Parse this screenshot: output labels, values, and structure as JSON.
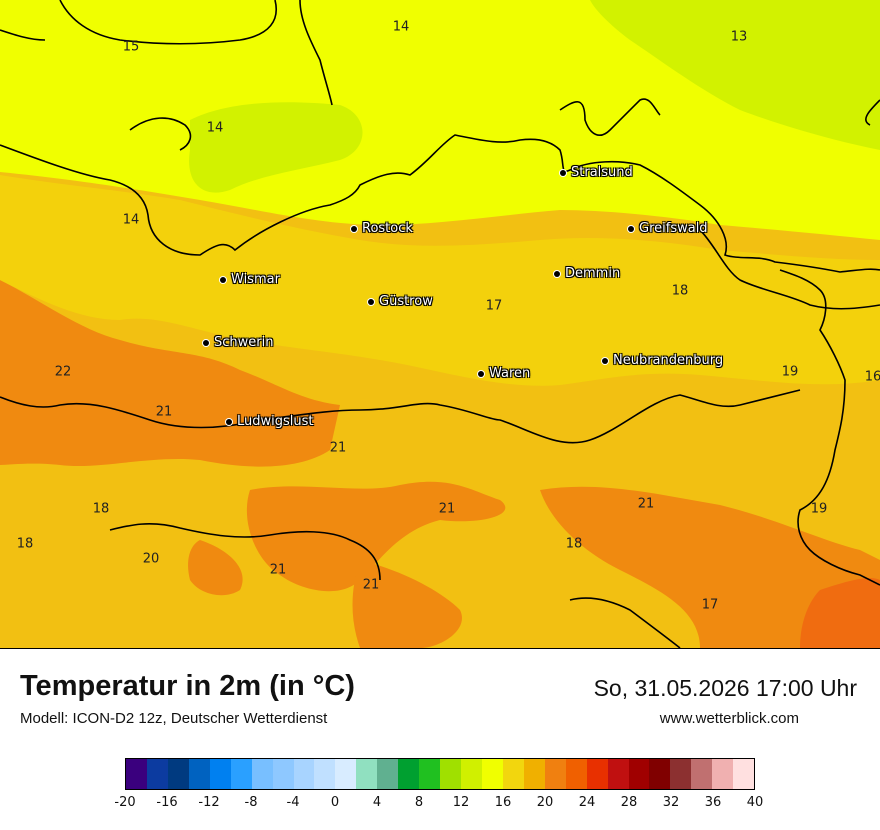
{
  "title": "Temperatur in 2m (in °C)",
  "subtitle": "Modell: ICON-D2 12z, Deutscher Wetterdienst",
  "datetime": "So, 31.05.2026 17:00 Uhr",
  "website": "www.wetterblick.com",
  "cities": [
    {
      "name": "Stralsund"
    },
    {
      "name": "Rostock"
    },
    {
      "name": "Greifswald"
    },
    {
      "name": "Wismar"
    },
    {
      "name": "Demmin"
    },
    {
      "name": "Güstrow"
    },
    {
      "name": "Schwerin"
    },
    {
      "name": "Neubrandenburg"
    },
    {
      "name": "Waren"
    },
    {
      "name": "Ludwigslust"
    }
  ],
  "temperature_labels": [
    "15",
    "14",
    "13",
    "14",
    "14",
    "18",
    "17",
    "22",
    "21",
    "19",
    "16",
    "21",
    "18",
    "21",
    "21",
    "19",
    "18",
    "18",
    "20",
    "21",
    "21",
    "17"
  ],
  "legend": {
    "colors": [
      "#3a007e",
      "#0c3ba0",
      "#003a80",
      "#0062c0",
      "#0080f0",
      "#2aa0ff",
      "#78bfff",
      "#8ec8ff",
      "#a8d4ff",
      "#c0e0ff",
      "#d8ecff",
      "#90e0c0",
      "#60b090",
      "#00a030",
      "#20c020",
      "#a0e000",
      "#d0f000",
      "#f0ff00",
      "#f2d60e",
      "#f0b000",
      "#f08010",
      "#f06000",
      "#e83000",
      "#c01010",
      "#a00000",
      "#800000",
      "#8c3030",
      "#c07070",
      "#f0b0b0",
      "#ffe0e0"
    ],
    "ticks": [
      "-20",
      "-16",
      "-12",
      "-8",
      "-4",
      "0",
      "4",
      "8",
      "12",
      "16",
      "20",
      "24",
      "28",
      "32",
      "36",
      "40"
    ]
  }
}
